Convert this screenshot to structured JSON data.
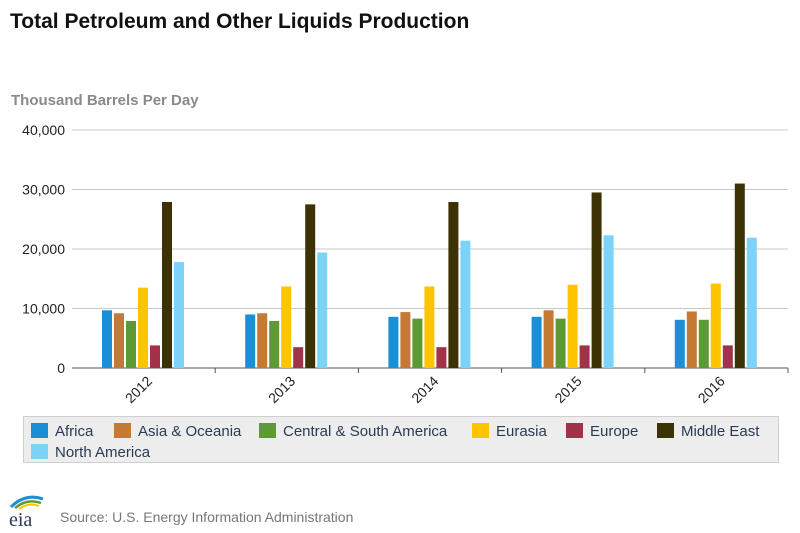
{
  "title": "Total Petroleum and Other Liquids Production",
  "source": "Source: U.S. Energy Information Administration",
  "logo_text": "eia",
  "colors": {
    "Africa": "#1a8fd6",
    "Asia & Oceania": "#c47a35",
    "Central & South America": "#5e9a33",
    "Eurasia": "#ffc400",
    "Europe": "#a2324a",
    "Middle East": "#3d3205",
    "North America": "#7cd3f7"
  },
  "chart_data": {
    "type": "bar",
    "title": "Total Petroleum and Other Liquids Production",
    "xlabel": "",
    "ylabel": "Thousand Barrels Per Day",
    "ylim": [
      0,
      40000
    ],
    "yticks": [
      "0",
      "10,000",
      "20,000",
      "30,000",
      "40,000"
    ],
    "ytick_values": [
      0,
      10000,
      20000,
      30000,
      40000
    ],
    "grid": true,
    "legend_position": "bottom",
    "categories": [
      "2012",
      "2013",
      "2014",
      "2015",
      "2016"
    ],
    "series": [
      {
        "name": "Africa",
        "values": [
          9700,
          9000,
          8600,
          8600,
          8100
        ]
      },
      {
        "name": "Asia & Oceania",
        "values": [
          9200,
          9200,
          9400,
          9700,
          9500
        ]
      },
      {
        "name": "Central & South America",
        "values": [
          7900,
          7900,
          8300,
          8300,
          8100
        ]
      },
      {
        "name": "Eurasia",
        "values": [
          13500,
          13700,
          13700,
          14000,
          14200
        ]
      },
      {
        "name": "Europe",
        "values": [
          3800,
          3500,
          3500,
          3800,
          3800
        ]
      },
      {
        "name": "Middle East",
        "values": [
          27900,
          27500,
          27900,
          29500,
          31000
        ]
      },
      {
        "name": "North America",
        "values": [
          17800,
          19400,
          21400,
          22300,
          21900
        ]
      }
    ]
  }
}
